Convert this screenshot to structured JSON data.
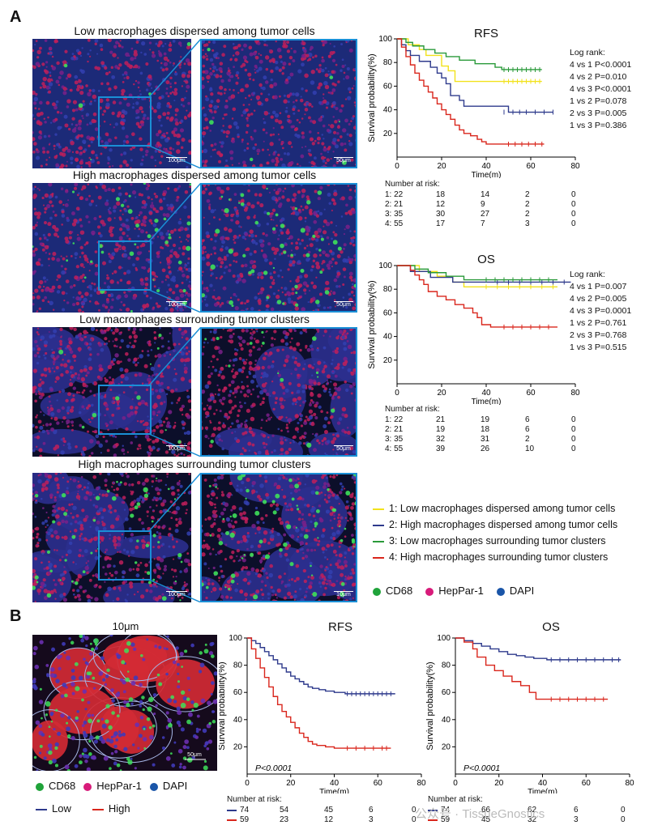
{
  "panelA": {
    "label": "A",
    "rows": [
      {
        "title": "Low macrophages  dispersed among tumor cells",
        "scale_left": "100μm",
        "scale_right": "50μm",
        "green": 0.08,
        "tone": "dense"
      },
      {
        "title": "High macrophages dispersed among tumor cells",
        "scale_left": "100μm",
        "scale_right": "50μm",
        "green": 0.5,
        "tone": "dense"
      },
      {
        "title": "Low macrophages surrounding tumor clusters",
        "scale_left": "100μm",
        "scale_right": "50μm",
        "green": 0.15,
        "tone": "cluster"
      },
      {
        "title": "High macrophages surrounding tumor clusters",
        "scale_left": "100μm",
        "scale_right": "10μm",
        "green": 0.7,
        "tone": "cluster"
      }
    ],
    "legend": [
      {
        "num": "1:",
        "text": "Low macrophages  dispersed among tumor cells",
        "color": "#f2e21b"
      },
      {
        "num": "2:",
        "text": "High macrophages dispersed among tumor cells",
        "color": "#2e3a8c"
      },
      {
        "num": "3:",
        "text": "Low macrophages  surrounding tumor clusters",
        "color": "#2a9a3a"
      },
      {
        "num": "4:",
        "text": "High macrophages  surrounding tumor clusters",
        "color": "#d9261c"
      }
    ],
    "stains": [
      {
        "name": "CD68",
        "color": "#1fa33a"
      },
      {
        "name": "HepPar-1",
        "color": "#d81b7a"
      },
      {
        "name": "DAPI",
        "color": "#1a55a8"
      }
    ]
  },
  "panelB": {
    "label": "B",
    "image_title": "10μm",
    "scale": "50μm",
    "stains": [
      {
        "name": "CD68",
        "color": "#1fa33a"
      },
      {
        "name": "HepPar-1",
        "color": "#d81b7a"
      },
      {
        "name": "DAPI",
        "color": "#1a55a8"
      }
    ],
    "legend": [
      {
        "name": "Low",
        "color": "#2e3a8c"
      },
      {
        "name": "High",
        "color": "#d9261c"
      }
    ]
  },
  "chart_data": [
    {
      "id": "A-RFS",
      "type": "line",
      "title": "RFS",
      "xlabel": "Time(m)",
      "ylabel": "Survival probability(%)",
      "xlim": [
        0,
        80
      ],
      "ylim": [
        0,
        100
      ],
      "xticks": [
        0,
        20,
        40,
        60,
        80
      ],
      "yticks": [
        20,
        40,
        60,
        80,
        100
      ],
      "stats_header": "Log rank:",
      "stats": [
        "4 vs 1 P<0.0001",
        "4 vs 2  P=0.010",
        "4 vs 3 P<0.0001",
        "1 vs 2 P=0.078",
        "2 vs 3 P=0.005",
        "1 vs 3 P=0.386"
      ],
      "series": [
        {
          "name": "1",
          "color": "#f2e21b",
          "x": [
            0,
            5,
            10,
            13,
            20,
            23,
            26,
            65
          ],
          "y": [
            100,
            95,
            91,
            86,
            77,
            73,
            64,
            64
          ],
          "censor": [
            48,
            50,
            52,
            54,
            56,
            58,
            60,
            62,
            64
          ]
        },
        {
          "name": "2",
          "color": "#2e3a8c",
          "x": [
            0,
            2,
            4,
            6,
            10,
            15,
            18,
            20,
            22,
            24,
            28,
            30,
            47,
            50,
            70
          ],
          "y": [
            100,
            95,
            90,
            86,
            81,
            76,
            71,
            67,
            62,
            52,
            48,
            43,
            43,
            38,
            38
          ],
          "censor": [
            48,
            52,
            55,
            58,
            62,
            66,
            70
          ]
        },
        {
          "name": "3",
          "color": "#2a9a3a",
          "x": [
            0,
            4,
            7,
            12,
            17,
            22,
            28,
            35,
            44,
            47,
            65
          ],
          "y": [
            100,
            97,
            94,
            91,
            88,
            85,
            82,
            79,
            76,
            74,
            74
          ],
          "censor": [
            48,
            50,
            52,
            54,
            56,
            58,
            60,
            62,
            64
          ]
        },
        {
          "name": "4",
          "color": "#d9261c",
          "x": [
            0,
            2,
            4,
            6,
            8,
            10,
            12,
            14,
            16,
            18,
            20,
            22,
            24,
            26,
            28,
            30,
            33,
            36,
            38,
            40,
            42,
            46,
            66
          ],
          "y": [
            100,
            93,
            85,
            78,
            71,
            65,
            60,
            55,
            50,
            45,
            40,
            36,
            32,
            27,
            23,
            20,
            18,
            15,
            13,
            11,
            11,
            11,
            11
          ],
          "censor": [
            50,
            53,
            56,
            59,
            62,
            65
          ]
        }
      ],
      "risk_header": "Number at risk:",
      "risk_rows": [
        {
          "label": "1: 22",
          "values": [
            "18",
            "14",
            "2",
            "0"
          ]
        },
        {
          "label": "2: 21",
          "values": [
            "12",
            "9",
            "2",
            "0"
          ]
        },
        {
          "label": "3: 35",
          "values": [
            "30",
            "27",
            "2",
            "0"
          ]
        },
        {
          "label": "4: 55",
          "values": [
            "17",
            "7",
            "3",
            "0"
          ]
        }
      ]
    },
    {
      "id": "A-OS",
      "type": "line",
      "title": "OS",
      "xlabel": "Time(m)",
      "ylabel": "Survival probability(%)",
      "xlim": [
        0,
        80
      ],
      "ylim": [
        0,
        100
      ],
      "xticks": [
        0,
        20,
        40,
        60,
        80
      ],
      "yticks": [
        20,
        40,
        60,
        80,
        100
      ],
      "stats_header": "Log rank:",
      "stats": [
        "4 vs 1 P=0.007",
        "4 vs 2  P=0.005",
        "4 vs 3 P=0.0001",
        "1 vs 2 P=0.761",
        "2 vs 3 P=0.768",
        "1 vs 3 P=0.515"
      ],
      "series": [
        {
          "name": "1",
          "color": "#f2e21b",
          "x": [
            0,
            10,
            18,
            25,
            30,
            72
          ],
          "y": [
            100,
            95,
            91,
            86,
            82,
            82
          ],
          "censor": [
            40,
            45,
            50,
            55,
            60,
            65,
            70
          ]
        },
        {
          "name": "2",
          "color": "#2e3a8c",
          "x": [
            0,
            6,
            15,
            25,
            35,
            78
          ],
          "y": [
            100,
            95,
            90,
            86,
            86,
            86
          ],
          "censor": [
            45,
            50,
            55,
            60,
            65,
            70,
            75
          ]
        },
        {
          "name": "3",
          "color": "#2a9a3a",
          "x": [
            0,
            8,
            14,
            22,
            30,
            36,
            72
          ],
          "y": [
            100,
            97,
            94,
            91,
            88,
            88,
            88
          ],
          "censor": [
            40,
            44,
            48,
            52,
            56,
            60,
            64,
            68
          ]
        },
        {
          "name": "4",
          "color": "#d9261c",
          "x": [
            0,
            6,
            8,
            10,
            12,
            14,
            18,
            22,
            26,
            30,
            34,
            36,
            38,
            42,
            72
          ],
          "y": [
            100,
            96,
            92,
            88,
            84,
            78,
            74,
            71,
            67,
            64,
            60,
            56,
            50,
            48,
            48
          ],
          "censor": [
            48,
            52,
            56,
            60,
            64,
            68
          ]
        }
      ],
      "risk_header": "Number at risk:",
      "risk_rows": [
        {
          "label": "1: 22",
          "values": [
            "21",
            "19",
            "6",
            "0"
          ]
        },
        {
          "label": "2: 21",
          "values": [
            "19",
            "18",
            "6",
            "0"
          ]
        },
        {
          "label": "3: 35",
          "values": [
            "32",
            "31",
            "2",
            "0"
          ]
        },
        {
          "label": "4: 55",
          "values": [
            "39",
            "26",
            "10",
            "0"
          ]
        }
      ]
    },
    {
      "id": "B-RFS",
      "type": "line",
      "title": "RFS",
      "xlabel": "Time(m)",
      "ylabel": "Survival probability(%)",
      "xlim": [
        0,
        80
      ],
      "ylim": [
        0,
        100
      ],
      "xticks": [
        0,
        20,
        40,
        60,
        80
      ],
      "yticks": [
        20,
        40,
        60,
        80,
        100
      ],
      "annotation": "P<0.0001",
      "series": [
        {
          "name": "Low",
          "color": "#2e3a8c",
          "x": [
            0,
            2,
            4,
            6,
            8,
            10,
            12,
            14,
            16,
            18,
            20,
            22,
            24,
            26,
            28,
            30,
            33,
            36,
            40,
            45,
            50,
            68
          ],
          "y": [
            100,
            98,
            96,
            93,
            90,
            87,
            84,
            81,
            78,
            75,
            72,
            70,
            68,
            66,
            64,
            63,
            62,
            61,
            60,
            59,
            59,
            59
          ],
          "censor": [
            46,
            48,
            50,
            52,
            54,
            56,
            58,
            60,
            62,
            64,
            66
          ]
        },
        {
          "name": "High",
          "color": "#d9261c",
          "x": [
            0,
            2,
            4,
            6,
            8,
            10,
            12,
            14,
            16,
            18,
            20,
            22,
            24,
            26,
            28,
            30,
            32,
            36,
            40,
            44,
            66
          ],
          "y": [
            100,
            92,
            85,
            78,
            71,
            64,
            57,
            51,
            46,
            42,
            38,
            34,
            30,
            27,
            24,
            22,
            21,
            20,
            19,
            19,
            19
          ],
          "censor": [
            46,
            50,
            54,
            58,
            62,
            64
          ]
        }
      ],
      "risk_header": "Number at risk:",
      "risk_rows": [
        {
          "label": "74",
          "values": [
            "54",
            "45",
            "6",
            "0"
          ]
        },
        {
          "label": "59",
          "values": [
            "23",
            "12",
            "3",
            "0"
          ]
        }
      ]
    },
    {
      "id": "B-OS",
      "type": "line",
      "title": "OS",
      "xlabel": "Time(m)",
      "ylabel": "Survival probability(%)",
      "xlim": [
        0,
        80
      ],
      "ylim": [
        0,
        100
      ],
      "xticks": [
        0,
        20,
        40,
        60,
        80
      ],
      "yticks": [
        20,
        40,
        60,
        80,
        100
      ],
      "annotation": "P<0.0001",
      "series": [
        {
          "name": "Low",
          "color": "#2e3a8c",
          "x": [
            0,
            4,
            8,
            12,
            16,
            20,
            24,
            28,
            32,
            36,
            42,
            76
          ],
          "y": [
            100,
            98,
            96,
            94,
            92,
            90,
            88,
            87,
            86,
            85,
            84,
            84
          ],
          "censor": [
            44,
            48,
            52,
            56,
            60,
            64,
            68,
            72,
            75
          ]
        },
        {
          "name": "High",
          "color": "#d9261c",
          "x": [
            0,
            4,
            8,
            10,
            14,
            18,
            22,
            26,
            30,
            34,
            37,
            40,
            70
          ],
          "y": [
            100,
            97,
            92,
            86,
            80,
            76,
            72,
            68,
            65,
            60,
            55,
            55,
            55
          ],
          "censor": [
            44,
            48,
            52,
            56,
            60,
            64,
            68
          ]
        }
      ],
      "risk_header": "Number at risk:",
      "risk_rows": [
        {
          "label": "74",
          "values": [
            "66",
            "62",
            "6",
            "0"
          ]
        },
        {
          "label": "59",
          "values": [
            "45",
            "32",
            "3",
            "0"
          ]
        }
      ]
    }
  ],
  "watermark": "公众号 · TissueGnostics"
}
